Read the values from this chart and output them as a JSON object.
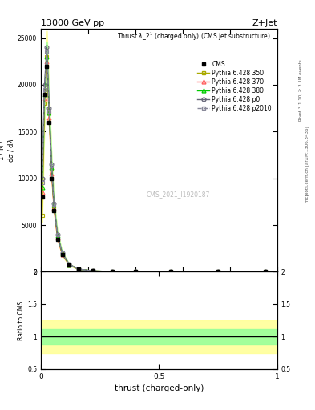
{
  "title_top": "13000 GeV pp",
  "title_top_right": "Z+Jet",
  "plot_title": "Thrust $\\lambda$_2$^1$ (charged only) (CMS jet substructure)",
  "xlabel": "thrust (charged-only)",
  "ylabel_main": "1 / $\\mathregular{N}$ / $\\mathregular{d\\sigma}$ / $\\mathregular{d\\lambda}$",
  "ylabel_ratio": "Ratio to CMS",
  "right_label_top": "Rivet 3.1.10, ≥ 3.1M events",
  "right_label_bottom": "mcplots.cern.ch [arXiv:1306.3436]",
  "watermark": "CMS_2021_I1920187",
  "legend_entries": [
    "CMS",
    "Pythia 6.428 350",
    "Pythia 6.428 370",
    "Pythia 6.428 380",
    "Pythia 6.428 p0",
    "Pythia 6.428 p2010"
  ],
  "cms_color": "#000000",
  "p350_color": "#aaaa00",
  "p370_color": "#ff6060",
  "p380_color": "#00cc00",
  "p0_color": "#666677",
  "p2010_color": "#888899",
  "thrust_x": [
    0.005,
    0.015,
    0.025,
    0.035,
    0.045,
    0.055,
    0.07,
    0.09,
    0.12,
    0.16,
    0.22,
    0.3,
    0.4,
    0.55,
    0.75,
    0.95
  ],
  "cms_y": [
    8000,
    19000,
    22000,
    16000,
    10000,
    6500,
    3500,
    1800,
    700,
    250,
    80,
    25,
    8,
    2,
    0.5,
    0.1
  ],
  "p350_y": [
    6000,
    18000,
    23000,
    17000,
    11000,
    7000,
    3800,
    1900,
    750,
    270,
    85,
    28,
    9,
    2.5,
    0.6,
    0.1
  ],
  "p370_y": [
    8500,
    18500,
    22500,
    16500,
    10500,
    6800,
    3600,
    1850,
    720,
    260,
    82,
    26,
    8.5,
    2.2,
    0.55,
    0.1
  ],
  "p380_y": [
    9000,
    19000,
    23000,
    17000,
    11200,
    7100,
    3900,
    1950,
    760,
    275,
    87,
    27,
    8.8,
    2.3,
    0.57,
    0.1
  ],
  "p0_y": [
    10000,
    20000,
    24000,
    17500,
    11500,
    7300,
    4000,
    2000,
    780,
    280,
    88,
    28,
    9,
    2.4,
    0.6,
    0.1
  ],
  "p2010_y": [
    9500,
    19500,
    23500,
    17200,
    11300,
    7200,
    3950,
    1980,
    770,
    278,
    87,
    27.5,
    8.9,
    2.35,
    0.58,
    0.1
  ],
  "ylim_main": [
    0,
    26000
  ],
  "ylim_ratio": [
    0.5,
    2.0
  ],
  "ratio_yellow_lo": 0.75,
  "ratio_yellow_hi": 1.25,
  "ratio_green_lo": 0.88,
  "ratio_green_hi": 1.12,
  "bg_color": "#ffffff"
}
